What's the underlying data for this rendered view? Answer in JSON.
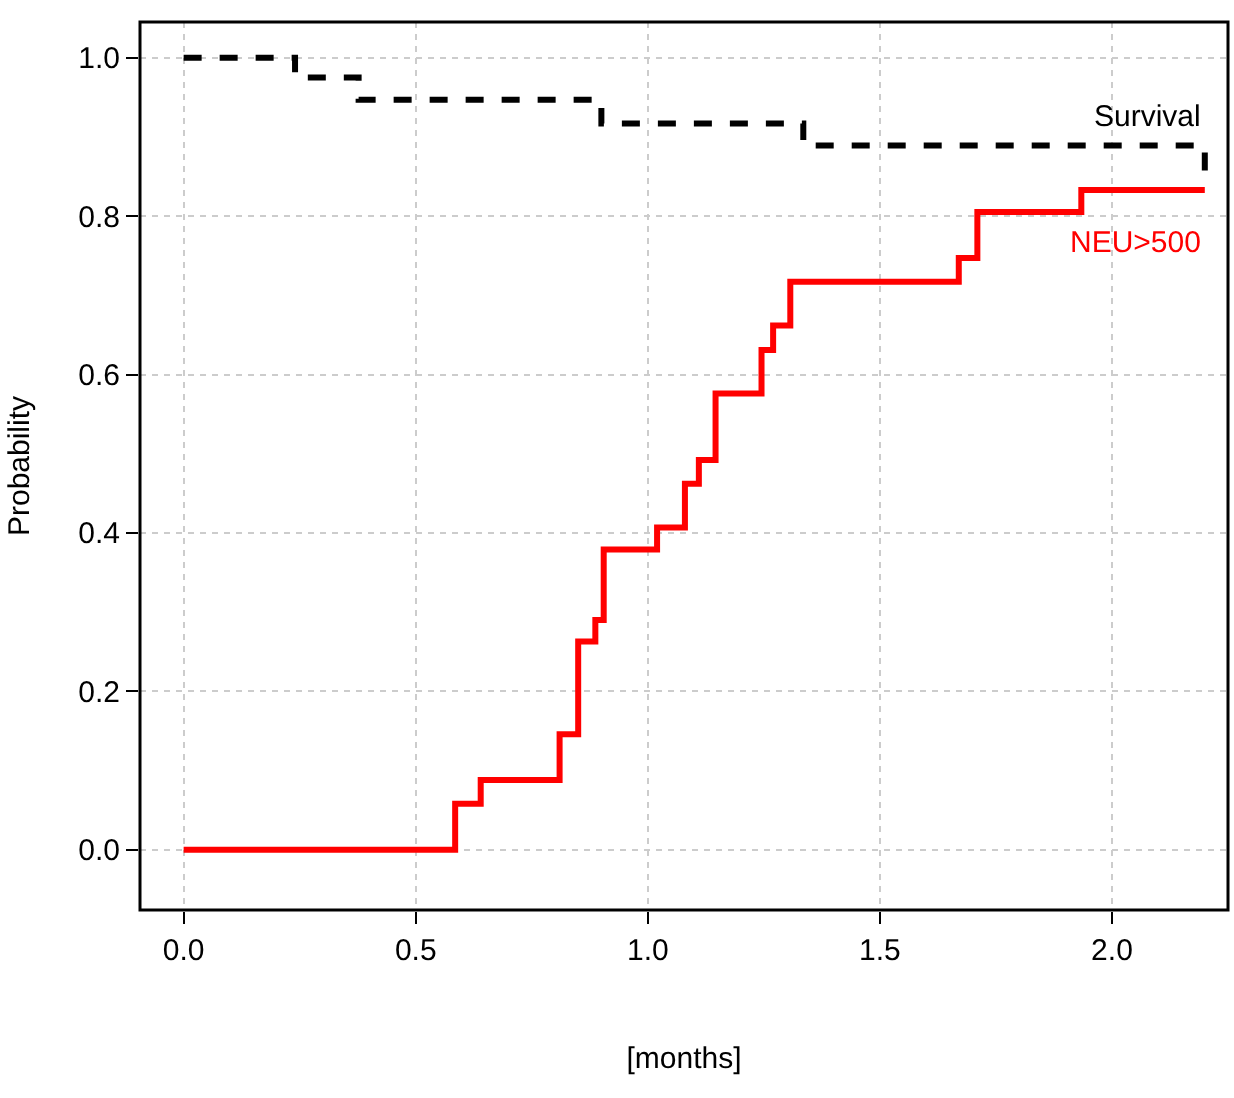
{
  "chart_data": {
    "type": "step",
    "xlabel": "[months]",
    "ylabel": "Probability",
    "series": [
      {
        "color": "#000000",
        "line_style": "dashed",
        "x": [
          0,
          0.24,
          0.377,
          0.9,
          1.335,
          2.2,
          2.2
        ],
        "values": [
          1.0,
          0.975,
          0.947,
          0.917,
          0.889,
          0.889,
          0.85
        ]
      },
      {
        "color": "#ff0000",
        "line_style": "solid",
        "x": [
          0,
          0.585,
          0.64,
          0.81,
          0.85,
          0.887,
          0.905,
          1.02,
          1.08,
          1.11,
          1.146,
          1.245,
          1.27,
          1.307,
          1.67,
          1.71,
          1.934,
          2.2
        ],
        "values": [
          0,
          0.058,
          0.088,
          0.146,
          0.263,
          0.29,
          0.379,
          0.407,
          0.462,
          0.492,
          0.576,
          0.631,
          0.662,
          0.717,
          0.747,
          0.805,
          0.833,
          0.833
        ]
      }
    ],
    "annotations": [
      "Survival",
      "NEU>500"
    ],
    "xlim": [
      -0.094,
      2.25
    ],
    "ylim": [
      -0.076,
      1.045
    ],
    "xticks": [
      {
        "value": 0,
        "label": "0.0"
      },
      {
        "value": 0.5,
        "label": "0.5"
      },
      {
        "value": 1,
        "label": "1.0"
      },
      {
        "value": 1.5,
        "label": "1.5"
      },
      {
        "value": 2,
        "label": "2.0"
      }
    ],
    "yticks": [
      {
        "value": 0,
        "label": "0.0"
      },
      {
        "value": 0.2,
        "label": "0.2"
      },
      {
        "value": 0.4,
        "label": "0.4"
      },
      {
        "value": 0.6,
        "label": "0.6"
      },
      {
        "value": 0.8,
        "label": "0.8"
      },
      {
        "value": 1,
        "label": "1.0"
      }
    ],
    "grid": true
  }
}
